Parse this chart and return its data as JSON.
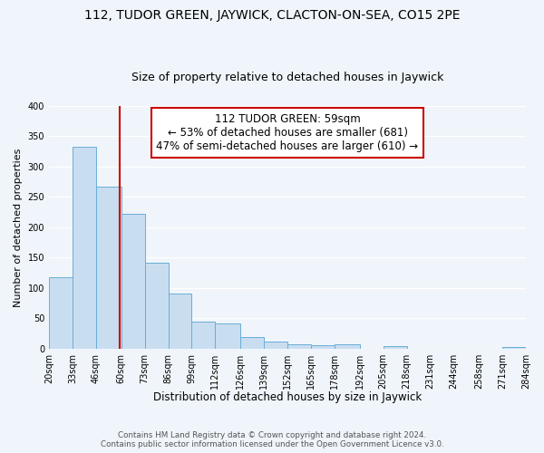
{
  "title": "112, TUDOR GREEN, JAYWICK, CLACTON-ON-SEA, CO15 2PE",
  "subtitle": "Size of property relative to detached houses in Jaywick",
  "xlabel": "Distribution of detached houses by size in Jaywick",
  "ylabel": "Number of detached properties",
  "bar_edges": [
    20,
    33,
    46,
    60,
    73,
    86,
    99,
    112,
    126,
    139,
    152,
    165,
    178,
    192,
    205,
    218,
    231,
    244,
    258,
    271,
    284
  ],
  "bar_heights": [
    118,
    333,
    267,
    222,
    142,
    91,
    44,
    41,
    20,
    12,
    8,
    6,
    8,
    0,
    4,
    0,
    0,
    0,
    0,
    3
  ],
  "bar_color": "#c9ddf0",
  "bar_edge_color": "#6aaed6",
  "vline_x": 59,
  "vline_color": "#cc0000",
  "annotation_text": "112 TUDOR GREEN: 59sqm\n← 53% of detached houses are smaller (681)\n47% of semi-detached houses are larger (610) →",
  "annotation_box_color": "white",
  "annotation_box_edge": "#cc0000",
  "annotation_fontsize": 8.5,
  "ylim": [
    0,
    400
  ],
  "yticks": [
    0,
    50,
    100,
    150,
    200,
    250,
    300,
    350,
    400
  ],
  "tick_labels": [
    "20sqm",
    "33sqm",
    "46sqm",
    "60sqm",
    "73sqm",
    "86sqm",
    "99sqm",
    "112sqm",
    "126sqm",
    "139sqm",
    "152sqm",
    "165sqm",
    "178sqm",
    "192sqm",
    "205sqm",
    "218sqm",
    "231sqm",
    "244sqm",
    "258sqm",
    "271sqm",
    "284sqm"
  ],
  "footer_line1": "Contains HM Land Registry data © Crown copyright and database right 2024.",
  "footer_line2": "Contains public sector information licensed under the Open Government Licence v3.0.",
  "background_color": "#f0f5fb",
  "grid_color": "white",
  "title_fontsize": 10,
  "subtitle_fontsize": 9,
  "xlabel_fontsize": 8.5,
  "ylabel_fontsize": 8,
  "tick_fontsize": 7
}
